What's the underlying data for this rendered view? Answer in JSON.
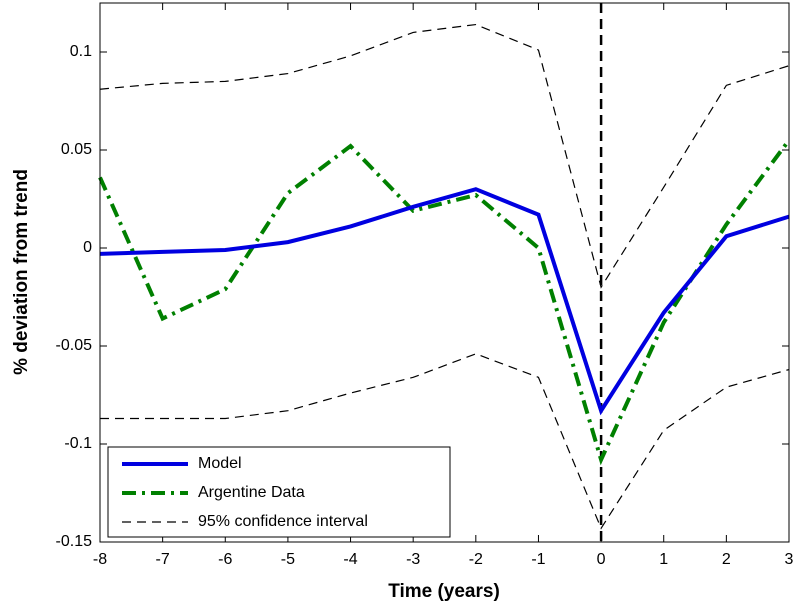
{
  "chart_data": {
    "type": "line",
    "xlabel": "Time (years)",
    "ylabel": "% deviation from trend",
    "x": [
      -8,
      -7,
      -6,
      -5,
      -4,
      -3,
      -2,
      -1,
      0,
      1,
      2,
      3
    ],
    "series": [
      {
        "name": "Model",
        "color": "#0000e0",
        "width": 4,
        "dash": "none",
        "values": [
          -0.003,
          -0.002,
          -0.001,
          0.003,
          0.011,
          0.021,
          0.03,
          0.017,
          -0.083,
          -0.033,
          0.006,
          0.016
        ]
      },
      {
        "name": "Argentine Data",
        "color": "#008000",
        "width": 4,
        "dash": "14 6 3 6",
        "values": [
          0.036,
          -0.036,
          -0.021,
          0.028,
          0.052,
          0.019,
          0.027,
          0.0,
          -0.108,
          -0.038,
          0.012,
          0.055
        ]
      },
      {
        "name": "95% confidence interval",
        "color": "#000000",
        "width": 1.2,
        "dash": "9 6",
        "values": [
          0.081,
          0.084,
          0.085,
          0.089,
          0.098,
          0.11,
          0.114,
          0.101,
          -0.02,
          0.031,
          0.083,
          0.093
        ],
        "lower": [
          -0.087,
          -0.087,
          -0.087,
          -0.083,
          -0.074,
          -0.066,
          -0.054,
          -0.066,
          -0.143,
          -0.093,
          -0.071,
          -0.062
        ]
      }
    ],
    "vline": 0,
    "xlim": [
      -8,
      3
    ],
    "xticks": [
      -8,
      -7,
      -6,
      -5,
      -4,
      -3,
      -2,
      -1,
      0,
      1,
      2,
      3
    ],
    "ylim": [
      -0.15,
      0.125
    ],
    "yticks": [
      -0.15,
      -0.1,
      -0.05,
      0,
      0.05,
      0.1
    ],
    "legend": "lower-left",
    "grid": false
  }
}
